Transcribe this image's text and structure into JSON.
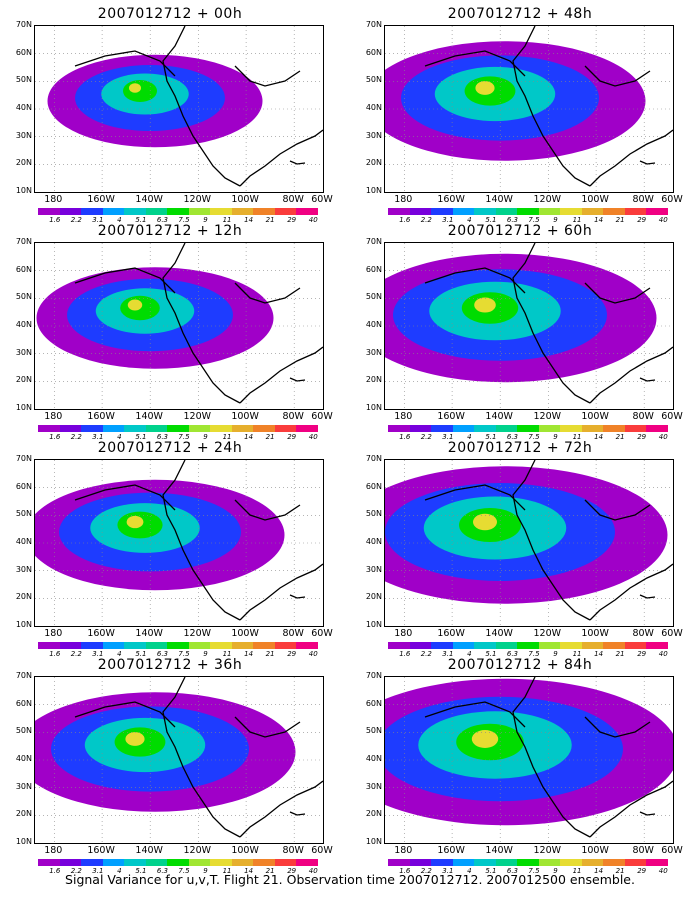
{
  "footer": "Signal Variance for u,v,T. Flight 21. Observation time 2007012712. 2007012500 ensemble.",
  "y_ticks": [
    "70N",
    "60N",
    "50N",
    "40N",
    "30N",
    "20N",
    "10N"
  ],
  "x_ticks": [
    "180",
    "160W",
    "140W",
    "120W",
    "100W",
    "80W",
    "60W"
  ],
  "colorbar_levels": [
    "1.6",
    "2.2",
    "3.1",
    "4",
    "5.1",
    "6.3",
    "7.5",
    "9",
    "11",
    "14",
    "21",
    "29",
    "40"
  ],
  "colorbar_colors": [
    "#a000c8",
    "#7800dc",
    "#1e3cff",
    "#00a0ff",
    "#00c8c8",
    "#00d28c",
    "#00dc00",
    "#a0e632",
    "#e6dc32",
    "#e6af2d",
    "#f08228",
    "#fa3c3c",
    "#f00082"
  ],
  "panels": [
    {
      "title": "2007012712 + 00h",
      "intensity": 0.25
    },
    {
      "title": "2007012712 + 48h",
      "intensity": 0.55
    },
    {
      "title": "2007012712 + 12h",
      "intensity": 0.35
    },
    {
      "title": "2007012712 + 60h",
      "intensity": 0.65
    },
    {
      "title": "2007012712 + 24h",
      "intensity": 0.45
    },
    {
      "title": "2007012712 + 72h",
      "intensity": 0.75
    },
    {
      "title": "2007012712 + 36h",
      "intensity": 0.55
    },
    {
      "title": "2007012712 + 84h",
      "intensity": 0.85
    }
  ]
}
